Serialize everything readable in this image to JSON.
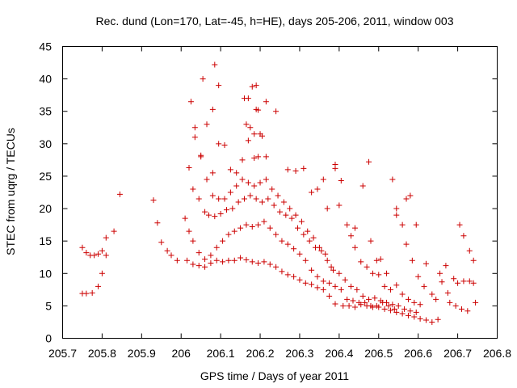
{
  "chart_data": {
    "type": "scatter",
    "title": "Rec. dund (Lon=170, Lat=-45, h=HE), days 205-206, 2011, window 003",
    "xlabel": "GPS time / Days of year 2011",
    "ylabel": "STEC from uqrg / TECUs",
    "xlim": [
      205.7,
      206.8
    ],
    "ylim": [
      0,
      45
    ],
    "xticks": [
      "205.7",
      "205.8",
      "205.9",
      "206",
      "206.1",
      "206.2",
      "206.3",
      "206.4",
      "206.5",
      "206.6",
      "206.7",
      "206.8"
    ],
    "yticks": [
      "0",
      "5",
      "10",
      "15",
      "20",
      "25",
      "30",
      "35",
      "40",
      "45"
    ],
    "grid": false,
    "legend": "none",
    "marker": "+",
    "color": "#cc0000",
    "series": [
      {
        "points": [
          [
            205.75,
            14.0
          ],
          [
            205.76,
            13.2
          ],
          [
            205.77,
            12.8
          ],
          [
            205.78,
            12.8
          ],
          [
            205.79,
            13.0
          ],
          [
            205.8,
            13.5
          ],
          [
            205.81,
            12.8
          ],
          [
            205.81,
            15.5
          ],
          [
            205.83,
            16.5
          ],
          [
            205.845,
            22.2
          ],
          [
            205.75,
            6.9
          ],
          [
            205.76,
            6.9
          ],
          [
            205.775,
            7.0
          ],
          [
            205.79,
            8.0
          ],
          [
            205.8,
            10.0
          ],
          [
            205.93,
            21.3
          ],
          [
            205.94,
            17.8
          ],
          [
            205.95,
            14.8
          ],
          [
            205.965,
            13.5
          ],
          [
            205.975,
            12.8
          ],
          [
            205.99,
            12.0
          ],
          [
            206.015,
            12.0
          ],
          [
            206.03,
            11.4
          ],
          [
            206.045,
            11.2
          ],
          [
            206.06,
            11.0
          ],
          [
            206.075,
            11.6
          ],
          [
            206.09,
            12.0
          ],
          [
            206.105,
            11.8
          ],
          [
            206.12,
            12.0
          ],
          [
            206.135,
            12.0
          ],
          [
            206.15,
            12.4
          ],
          [
            206.165,
            12.1
          ],
          [
            206.18,
            11.8
          ],
          [
            206.195,
            11.6
          ],
          [
            206.21,
            11.8
          ],
          [
            206.225,
            11.4
          ],
          [
            206.24,
            11.0
          ],
          [
            206.255,
            10.3
          ],
          [
            206.27,
            9.8
          ],
          [
            206.285,
            9.5
          ],
          [
            206.3,
            9.0
          ],
          [
            206.315,
            8.5
          ],
          [
            206.33,
            8.3
          ],
          [
            206.345,
            7.8
          ],
          [
            206.36,
            7.5
          ],
          [
            206.375,
            6.5
          ],
          [
            206.39,
            5.3
          ],
          [
            206.41,
            5.0
          ],
          [
            206.425,
            5.0
          ],
          [
            206.44,
            4.8
          ],
          [
            206.455,
            5.2
          ],
          [
            206.47,
            5.0
          ],
          [
            206.485,
            4.8
          ],
          [
            206.5,
            4.8
          ],
          [
            206.515,
            4.5
          ],
          [
            206.53,
            4.3
          ],
          [
            206.545,
            4.0
          ],
          [
            206.56,
            3.8
          ],
          [
            206.575,
            3.5
          ],
          [
            206.59,
            3.3
          ],
          [
            206.605,
            3.0
          ],
          [
            206.62,
            2.8
          ],
          [
            206.635,
            2.5
          ],
          [
            206.65,
            2.9
          ],
          [
            206.01,
            18.5
          ],
          [
            206.02,
            16.5
          ],
          [
            206.03,
            15.0
          ],
          [
            206.045,
            13.2
          ],
          [
            206.06,
            12.2
          ],
          [
            206.075,
            12.8
          ],
          [
            206.09,
            14.0
          ],
          [
            206.105,
            15.0
          ],
          [
            206.12,
            16.0
          ],
          [
            206.135,
            16.5
          ],
          [
            206.15,
            17.0
          ],
          [
            206.165,
            17.5
          ],
          [
            206.18,
            17.2
          ],
          [
            206.195,
            17.5
          ],
          [
            206.21,
            18.0
          ],
          [
            206.225,
            17.0
          ],
          [
            206.24,
            16.0
          ],
          [
            206.255,
            15.0
          ],
          [
            206.27,
            14.5
          ],
          [
            206.285,
            13.8
          ],
          [
            206.3,
            13.0
          ],
          [
            206.315,
            12.0
          ],
          [
            206.33,
            10.5
          ],
          [
            206.345,
            9.5
          ],
          [
            206.36,
            8.8
          ],
          [
            206.375,
            8.5
          ],
          [
            206.39,
            8.0
          ],
          [
            206.405,
            7.5
          ],
          [
            206.42,
            6.0
          ],
          [
            206.435,
            5.8
          ],
          [
            206.45,
            5.5
          ],
          [
            206.465,
            5.5
          ],
          [
            206.48,
            5.0
          ],
          [
            206.495,
            5.0
          ],
          [
            206.51,
            5.5
          ],
          [
            206.525,
            5.0
          ],
          [
            206.54,
            4.5
          ],
          [
            206.02,
            26.3
          ],
          [
            206.03,
            23.0
          ],
          [
            206.045,
            21.5
          ],
          [
            206.06,
            19.5
          ],
          [
            206.07,
            19.0
          ],
          [
            206.085,
            18.8
          ],
          [
            206.1,
            19.2
          ],
          [
            206.115,
            19.8
          ],
          [
            206.13,
            20.0
          ],
          [
            206.145,
            21.0
          ],
          [
            206.16,
            21.5
          ],
          [
            206.175,
            22.0
          ],
          [
            206.19,
            21.5
          ],
          [
            206.205,
            21.0
          ],
          [
            206.22,
            21.5
          ],
          [
            206.235,
            20.5
          ],
          [
            206.25,
            19.5
          ],
          [
            206.265,
            19.0
          ],
          [
            206.28,
            18.5
          ],
          [
            206.295,
            17.0
          ],
          [
            206.31,
            16.0
          ],
          [
            206.325,
            15.0
          ],
          [
            206.34,
            14.0
          ],
          [
            206.355,
            13.5
          ],
          [
            206.37,
            12.0
          ],
          [
            206.385,
            10.5
          ],
          [
            206.4,
            10.0
          ],
          [
            206.415,
            9.0
          ],
          [
            206.43,
            8.0
          ],
          [
            206.445,
            7.5
          ],
          [
            206.46,
            6.5
          ],
          [
            206.475,
            6.0
          ],
          [
            206.49,
            6.2
          ],
          [
            206.505,
            5.8
          ],
          [
            206.52,
            5.5
          ],
          [
            206.535,
            5.2
          ],
          [
            206.55,
            5.0
          ],
          [
            206.565,
            4.5
          ],
          [
            206.58,
            4.2
          ],
          [
            206.595,
            4.0
          ],
          [
            206.025,
            36.5
          ],
          [
            206.035,
            32.5
          ],
          [
            206.05,
            28.0
          ],
          [
            206.065,
            24.5
          ],
          [
            206.08,
            22.0
          ],
          [
            206.095,
            21.5
          ],
          [
            206.11,
            21.5
          ],
          [
            206.125,
            22.5
          ],
          [
            206.14,
            23.5
          ],
          [
            206.155,
            24.5
          ],
          [
            206.17,
            24.0
          ],
          [
            206.185,
            23.5
          ],
          [
            206.2,
            24.0
          ],
          [
            206.215,
            24.5
          ],
          [
            206.23,
            23.0
          ],
          [
            206.245,
            22.0
          ],
          [
            206.26,
            21.0
          ],
          [
            206.275,
            20.0
          ],
          [
            206.29,
            19.0
          ],
          [
            206.305,
            18.0
          ],
          [
            206.32,
            16.5
          ],
          [
            206.335,
            15.5
          ],
          [
            206.35,
            14.0
          ],
          [
            206.365,
            13.0
          ],
          [
            206.38,
            11.0
          ],
          [
            206.035,
            31.0
          ],
          [
            206.05,
            28.2
          ],
          [
            206.065,
            24.5
          ],
          [
            206.08,
            25.5
          ],
          [
            206.095,
            30.0
          ],
          [
            206.11,
            29.8
          ],
          [
            206.125,
            26.0
          ],
          [
            206.14,
            25.5
          ],
          [
            206.155,
            27.5
          ],
          [
            206.17,
            30.5
          ],
          [
            206.185,
            31.5
          ],
          [
            206.2,
            31.5
          ],
          [
            206.215,
            28.0
          ],
          [
            206.055,
            40.0
          ],
          [
            206.085,
            42.2
          ],
          [
            206.095,
            39.0
          ],
          [
            206.065,
            33.0
          ],
          [
            206.08,
            35.3
          ],
          [
            206.16,
            37.0
          ],
          [
            206.17,
            37.0
          ],
          [
            206.18,
            38.8
          ],
          [
            206.19,
            39.0
          ],
          [
            206.165,
            33.0
          ],
          [
            206.175,
            32.5
          ],
          [
            206.19,
            35.3
          ],
          [
            206.195,
            35.2
          ],
          [
            206.205,
            31.2
          ],
          [
            206.215,
            36.5
          ],
          [
            206.24,
            35.0
          ],
          [
            206.195,
            28.0
          ],
          [
            206.185,
            27.8
          ],
          [
            206.27,
            26.0
          ],
          [
            206.29,
            25.8
          ],
          [
            206.31,
            26.2
          ],
          [
            206.33,
            22.5
          ],
          [
            206.345,
            23.0
          ],
          [
            206.36,
            24.5
          ],
          [
            206.37,
            20.0
          ],
          [
            206.39,
            26.8
          ],
          [
            206.39,
            26.2
          ],
          [
            206.405,
            24.3
          ],
          [
            206.4,
            20.5
          ],
          [
            206.42,
            17.5
          ],
          [
            206.43,
            15.8
          ],
          [
            206.44,
            14.0
          ],
          [
            206.455,
            11.8
          ],
          [
            206.47,
            11.0
          ],
          [
            206.485,
            10.0
          ],
          [
            206.5,
            9.8
          ],
          [
            206.515,
            8.0
          ],
          [
            206.53,
            7.5
          ],
          [
            206.545,
            8.2
          ],
          [
            206.56,
            6.8
          ],
          [
            206.575,
            6.0
          ],
          [
            206.59,
            5.5
          ],
          [
            206.605,
            5.2
          ],
          [
            206.44,
            17.0
          ],
          [
            206.46,
            23.5
          ],
          [
            206.475,
            27.2
          ],
          [
            206.48,
            15.0
          ],
          [
            206.495,
            12.0
          ],
          [
            206.505,
            12.2
          ],
          [
            206.52,
            10.0
          ],
          [
            206.535,
            24.5
          ],
          [
            206.545,
            20.0
          ],
          [
            206.545,
            19.0
          ],
          [
            206.56,
            17.5
          ],
          [
            206.57,
            14.5
          ],
          [
            206.57,
            21.5
          ],
          [
            206.58,
            22.0
          ],
          [
            206.585,
            12.0
          ],
          [
            206.595,
            17.5
          ],
          [
            206.6,
            9.5
          ],
          [
            206.615,
            8.0
          ],
          [
            206.62,
            11.5
          ],
          [
            206.635,
            6.8
          ],
          [
            206.645,
            6.0
          ],
          [
            206.655,
            10.0
          ],
          [
            206.66,
            8.7
          ],
          [
            206.67,
            11.2
          ],
          [
            206.675,
            7.0
          ],
          [
            206.68,
            5.5
          ],
          [
            206.69,
            9.2
          ],
          [
            206.695,
            5.0
          ],
          [
            206.7,
            8.5
          ],
          [
            206.705,
            17.5
          ],
          [
            206.71,
            4.5
          ],
          [
            206.715,
            8.8
          ],
          [
            206.715,
            15.8
          ],
          [
            206.725,
            4.2
          ],
          [
            206.73,
            13.5
          ],
          [
            206.73,
            8.8
          ],
          [
            206.74,
            12.0
          ],
          [
            206.74,
            8.5
          ],
          [
            206.745,
            5.5
          ]
        ]
      }
    ]
  }
}
